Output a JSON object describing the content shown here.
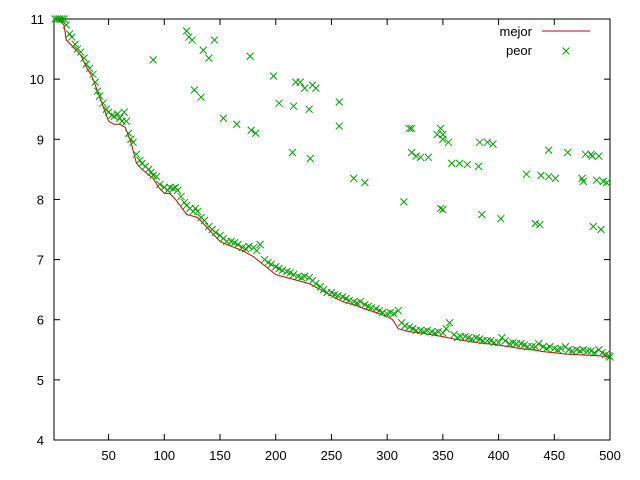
{
  "chart_data": {
    "type": "scatter",
    "xlim": [
      1,
      500
    ],
    "ylim": [
      4,
      11
    ],
    "x_ticks": [
      50,
      100,
      150,
      200,
      250,
      300,
      350,
      400,
      450,
      500
    ],
    "y_ticks": [
      4,
      5,
      6,
      7,
      8,
      9,
      10,
      11
    ],
    "grid": false,
    "legend_position": "top-right",
    "series": [
      {
        "name": "mejor",
        "kind": "line",
        "color": "#cc0000",
        "points": [
          [
            1,
            11.0
          ],
          [
            5,
            11.0
          ],
          [
            10,
            10.9
          ],
          [
            12,
            10.65
          ],
          [
            20,
            10.5
          ],
          [
            25,
            10.4
          ],
          [
            30,
            10.2
          ],
          [
            35,
            10.05
          ],
          [
            40,
            9.8
          ],
          [
            45,
            9.55
          ],
          [
            50,
            9.3
          ],
          [
            55,
            9.25
          ],
          [
            60,
            9.25
          ],
          [
            65,
            9.2
          ],
          [
            70,
            8.95
          ],
          [
            75,
            8.6
          ],
          [
            80,
            8.5
          ],
          [
            90,
            8.35
          ],
          [
            95,
            8.2
          ],
          [
            100,
            8.1
          ],
          [
            105,
            8.1
          ],
          [
            110,
            8.0
          ],
          [
            120,
            7.75
          ],
          [
            130,
            7.7
          ],
          [
            140,
            7.5
          ],
          [
            150,
            7.3
          ],
          [
            160,
            7.22
          ],
          [
            170,
            7.15
          ],
          [
            180,
            7.05
          ],
          [
            190,
            6.9
          ],
          [
            200,
            6.75
          ],
          [
            210,
            6.7
          ],
          [
            220,
            6.65
          ],
          [
            230,
            6.6
          ],
          [
            240,
            6.5
          ],
          [
            250,
            6.4
          ],
          [
            260,
            6.3
          ],
          [
            270,
            6.25
          ],
          [
            280,
            6.18
          ],
          [
            290,
            6.12
          ],
          [
            300,
            6.05
          ],
          [
            305,
            6.0
          ],
          [
            310,
            5.85
          ],
          [
            320,
            5.8
          ],
          [
            330,
            5.78
          ],
          [
            340,
            5.75
          ],
          [
            350,
            5.72
          ],
          [
            360,
            5.68
          ],
          [
            370,
            5.65
          ],
          [
            380,
            5.62
          ],
          [
            390,
            5.6
          ],
          [
            400,
            5.58
          ],
          [
            410,
            5.55
          ],
          [
            420,
            5.52
          ],
          [
            430,
            5.5
          ],
          [
            440,
            5.47
          ],
          [
            450,
            5.45
          ],
          [
            460,
            5.43
          ],
          [
            470,
            5.42
          ],
          [
            480,
            5.41
          ],
          [
            490,
            5.4
          ],
          [
            500,
            5.38
          ]
        ]
      },
      {
        "name": "peor",
        "kind": "points",
        "color": "#00a000",
        "points": [
          [
            2,
            11.0
          ],
          [
            4,
            11.0
          ],
          [
            6,
            11.0
          ],
          [
            8,
            11.0
          ],
          [
            10,
            11.0
          ],
          [
            12,
            10.9
          ],
          [
            15,
            10.75
          ],
          [
            17,
            10.7
          ],
          [
            20,
            10.58
          ],
          [
            22,
            10.5
          ],
          [
            25,
            10.45
          ],
          [
            28,
            10.35
          ],
          [
            30,
            10.25
          ],
          [
            33,
            10.18
          ],
          [
            36,
            10.08
          ],
          [
            38,
            9.95
          ],
          [
            40,
            9.8
          ],
          [
            42,
            9.72
          ],
          [
            45,
            9.6
          ],
          [
            48,
            9.5
          ],
          [
            50,
            9.45
          ],
          [
            53,
            9.4
          ],
          [
            55,
            9.38
          ],
          [
            58,
            9.42
          ],
          [
            60,
            9.35
          ],
          [
            62,
            9.3
          ],
          [
            64,
            9.45
          ],
          [
            66,
            9.3
          ],
          [
            68,
            9.1
          ],
          [
            70,
            9.0
          ],
          [
            72,
            8.95
          ],
          [
            75,
            8.75
          ],
          [
            78,
            8.65
          ],
          [
            80,
            8.6
          ],
          [
            83,
            8.55
          ],
          [
            86,
            8.5
          ],
          [
            88,
            8.45
          ],
          [
            90,
            8.4
          ],
          [
            93,
            8.38
          ],
          [
            96,
            8.25
          ],
          [
            100,
            8.2
          ],
          [
            103,
            8.15
          ],
          [
            105,
            8.2
          ],
          [
            108,
            8.18
          ],
          [
            110,
            8.2
          ],
          [
            112,
            8.15
          ],
          [
            115,
            8.05
          ],
          [
            118,
            7.95
          ],
          [
            120,
            7.9
          ],
          [
            123,
            7.85
          ],
          [
            126,
            7.8
          ],
          [
            128,
            7.85
          ],
          [
            130,
            7.8
          ],
          [
            133,
            7.7
          ],
          [
            136,
            7.65
          ],
          [
            140,
            7.55
          ],
          [
            143,
            7.5
          ],
          [
            146,
            7.45
          ],
          [
            150,
            7.4
          ],
          [
            153,
            7.35
          ],
          [
            156,
            7.3
          ],
          [
            160,
            7.3
          ],
          [
            163,
            7.28
          ],
          [
            166,
            7.25
          ],
          [
            170,
            7.2
          ],
          [
            173,
            7.18
          ],
          [
            176,
            7.22
          ],
          [
            180,
            7.2
          ],
          [
            183,
            7.15
          ],
          [
            186,
            7.25
          ],
          [
            190,
            7.0
          ],
          [
            193,
            6.95
          ],
          [
            196,
            6.92
          ],
          [
            200,
            6.88
          ],
          [
            203,
            6.85
          ],
          [
            206,
            6.82
          ],
          [
            210,
            6.8
          ],
          [
            213,
            6.78
          ],
          [
            216,
            6.75
          ],
          [
            220,
            6.72
          ],
          [
            223,
            6.7
          ],
          [
            226,
            6.72
          ],
          [
            230,
            6.7
          ],
          [
            233,
            6.65
          ],
          [
            236,
            6.6
          ],
          [
            240,
            6.55
          ],
          [
            243,
            6.5
          ],
          [
            246,
            6.45
          ],
          [
            250,
            6.45
          ],
          [
            253,
            6.42
          ],
          [
            256,
            6.4
          ],
          [
            260,
            6.38
          ],
          [
            263,
            6.35
          ],
          [
            266,
            6.32
          ],
          [
            270,
            6.3
          ],
          [
            273,
            6.28
          ],
          [
            276,
            6.3
          ],
          [
            280,
            6.25
          ],
          [
            283,
            6.22
          ],
          [
            286,
            6.2
          ],
          [
            290,
            6.18
          ],
          [
            293,
            6.15
          ],
          [
            296,
            6.12
          ],
          [
            300,
            6.1
          ],
          [
            303,
            6.12
          ],
          [
            306,
            6.1
          ],
          [
            310,
            6.15
          ],
          [
            313,
            5.95
          ],
          [
            316,
            5.9
          ],
          [
            320,
            5.88
          ],
          [
            323,
            5.85
          ],
          [
            326,
            5.82
          ],
          [
            330,
            5.82
          ],
          [
            333,
            5.8
          ],
          [
            336,
            5.82
          ],
          [
            340,
            5.8
          ],
          [
            343,
            5.78
          ],
          [
            346,
            5.8
          ],
          [
            350,
            5.78
          ],
          [
            353,
            5.85
          ],
          [
            356,
            5.95
          ],
          [
            360,
            5.75
          ],
          [
            363,
            5.7
          ],
          [
            366,
            5.72
          ],
          [
            370,
            5.72
          ],
          [
            373,
            5.7
          ],
          [
            376,
            5.68
          ],
          [
            380,
            5.7
          ],
          [
            383,
            5.68
          ],
          [
            386,
            5.65
          ],
          [
            390,
            5.65
          ],
          [
            393,
            5.65
          ],
          [
            396,
            5.62
          ],
          [
            400,
            5.62
          ],
          [
            403,
            5.7
          ],
          [
            406,
            5.65
          ],
          [
            410,
            5.6
          ],
          [
            413,
            5.62
          ],
          [
            416,
            5.6
          ],
          [
            420,
            5.6
          ],
          [
            423,
            5.58
          ],
          [
            426,
            5.55
          ],
          [
            430,
            5.55
          ],
          [
            433,
            5.55
          ],
          [
            436,
            5.6
          ],
          [
            440,
            5.55
          ],
          [
            443,
            5.52
          ],
          [
            446,
            5.55
          ],
          [
            450,
            5.52
          ],
          [
            453,
            5.5
          ],
          [
            456,
            5.52
          ],
          [
            460,
            5.55
          ],
          [
            463,
            5.5
          ],
          [
            466,
            5.48
          ],
          [
            470,
            5.5
          ],
          [
            473,
            5.48
          ],
          [
            476,
            5.5
          ],
          [
            480,
            5.48
          ],
          [
            483,
            5.48
          ],
          [
            486,
            5.45
          ],
          [
            490,
            5.5
          ],
          [
            493,
            5.45
          ],
          [
            496,
            5.42
          ],
          [
            499,
            5.4
          ],
          [
            500,
            5.38
          ],
          [
            90,
            10.32
          ],
          [
            120,
            10.8
          ],
          [
            122,
            10.7
          ],
          [
            125,
            10.65
          ],
          [
            127,
            9.82
          ],
          [
            133,
            9.7
          ],
          [
            135,
            10.48
          ],
          [
            140,
            10.35
          ],
          [
            145,
            10.65
          ],
          [
            153,
            9.35
          ],
          [
            165,
            9.25
          ],
          [
            177,
            10.38
          ],
          [
            178,
            9.15
          ],
          [
            182,
            9.1
          ],
          [
            198,
            10.05
          ],
          [
            203,
            9.6
          ],
          [
            216,
            9.55
          ],
          [
            218,
            9.95
          ],
          [
            222,
            9.95
          ],
          [
            226,
            9.85
          ],
          [
            230,
            9.5
          ],
          [
            233,
            9.9
          ],
          [
            236,
            9.85
          ],
          [
            215,
            8.78
          ],
          [
            231,
            8.68
          ],
          [
            257,
            9.62
          ],
          [
            257,
            9.22
          ],
          [
            270,
            8.35
          ],
          [
            280,
            8.28
          ],
          [
            315,
            7.96
          ],
          [
            320,
            9.18
          ],
          [
            322,
            9.18
          ],
          [
            322,
            8.78
          ],
          [
            326,
            8.72
          ],
          [
            330,
            8.7
          ],
          [
            337,
            8.7
          ],
          [
            345,
            9.08
          ],
          [
            348,
            9.18
          ],
          [
            350,
            9.08
          ],
          [
            350,
            9.0
          ],
          [
            355,
            8.95
          ],
          [
            348,
            7.85
          ],
          [
            350,
            7.83
          ],
          [
            358,
            8.6
          ],
          [
            365,
            8.6
          ],
          [
            372,
            8.58
          ],
          [
            382,
            8.55
          ],
          [
            383,
            8.95
          ],
          [
            390,
            8.95
          ],
          [
            395,
            8.92
          ],
          [
            385,
            7.75
          ],
          [
            402,
            7.68
          ],
          [
            425,
            8.42
          ],
          [
            433,
            7.6
          ],
          [
            437,
            7.58
          ],
          [
            438,
            8.4
          ],
          [
            445,
            8.38
          ],
          [
            445,
            8.82
          ],
          [
            451,
            8.35
          ],
          [
            462,
            8.78
          ],
          [
            475,
            8.35
          ],
          [
            478,
            8.75
          ],
          [
            476,
            8.3
          ],
          [
            483,
            8.75
          ],
          [
            484,
            8.72
          ],
          [
            488,
            8.32
          ],
          [
            490,
            8.72
          ],
          [
            494,
            8.3
          ],
          [
            497,
            8.28
          ],
          [
            485,
            7.55
          ],
          [
            492,
            7.5
          ]
        ]
      }
    ]
  }
}
